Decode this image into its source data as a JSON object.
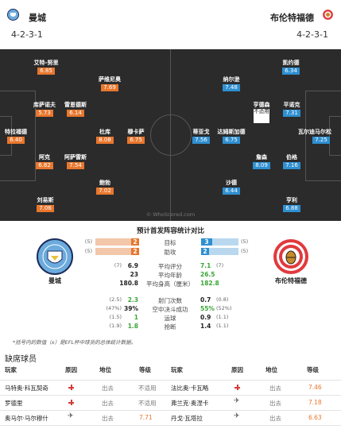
{
  "header": {
    "home": {
      "name": "曼城",
      "formation": "4-2-3-1",
      "crest": "man-city-crest"
    },
    "away": {
      "name": "布伦特福德",
      "formation": "4-2-3-1",
      "crest": "brentford-crest"
    }
  },
  "pitch": {
    "watermark": "© WhoScored.com",
    "home_players": [
      {
        "name": "艾特-努里",
        "rating": "6.85"
      },
      {
        "name": "萨维尼奥",
        "rating": "7.69"
      },
      {
        "name": "库萨诺夫",
        "rating": "5.73"
      },
      {
        "name": "雷恩德斯",
        "rating": "6.14"
      },
      {
        "name": "特拉福德",
        "rating": "6.40"
      },
      {
        "name": "杜库",
        "rating": "8.08"
      },
      {
        "name": "穆卡萨",
        "rating": "6.75"
      },
      {
        "name": "阿克",
        "rating": "6.82"
      },
      {
        "name": "阿萨雷斯",
        "rating": "7.54"
      },
      {
        "name": "鲍勃",
        "rating": "7.02"
      },
      {
        "name": "刘易斯",
        "rating": "7.06"
      }
    ],
    "away_players": [
      {
        "name": "凯约德",
        "rating": "6.34"
      },
      {
        "name": "纳尔逊",
        "rating": "7.48"
      },
      {
        "name": "亨德森",
        "rating": "不适用"
      },
      {
        "name": "平诺克",
        "rating": "7.31"
      },
      {
        "name": "蒂亚戈",
        "rating": "7.56"
      },
      {
        "name": "达姆斯加德",
        "rating": "6.75"
      },
      {
        "name": "瓦尔迪马尔松",
        "rating": "7.25"
      },
      {
        "name": "詹森",
        "rating": "8.09"
      },
      {
        "name": "伯格",
        "rating": "7.16"
      },
      {
        "name": "沙德",
        "rating": "6.44"
      },
      {
        "name": "亨利",
        "rating": "6.88"
      }
    ]
  },
  "stats": {
    "title": "预计首发阵容统计对比",
    "home_label": "曼城",
    "away_label": "布伦特福德",
    "bars": [
      {
        "label": "目标",
        "home_paren": "(5)",
        "home": "2",
        "away": "3",
        "away_paren": "(5)"
      },
      {
        "label": "助攻",
        "home_paren": "(5)",
        "home": "2",
        "away": "2",
        "away_paren": "(5)"
      }
    ],
    "rows": [
      {
        "label": "平均评分",
        "home_paren": "(7)",
        "home": "6.9",
        "away": "7.1",
        "away_paren": "(7)",
        "hl": "away"
      },
      {
        "label": "平均年龄",
        "home_paren": "",
        "home": "23",
        "away": "26.5",
        "away_paren": "",
        "hl": "away"
      },
      {
        "label": "平均身高（厘米）",
        "home_paren": "",
        "home": "180.8",
        "away": "182.8",
        "away_paren": "",
        "hl": "away"
      },
      {
        "label": "射门次数",
        "home_paren": "(2.5)",
        "home": "2.3",
        "away": "0.7",
        "away_paren": "(0.8)",
        "hl": "home"
      },
      {
        "label": "空中决斗成功",
        "home_paren": "(47%)",
        "home": "39%",
        "away": "55%",
        "away_paren": "(52%)",
        "hl": "away"
      },
      {
        "label": "运球",
        "home_paren": "(1.5)",
        "home": "1",
        "away": "0.9",
        "away_paren": "(1.1)",
        "hl": "home"
      },
      {
        "label": "抢断",
        "home_paren": "(1.9)",
        "home": "1.8",
        "away": "1.4",
        "away_paren": "(1.1)",
        "hl": "home"
      }
    ],
    "footnote": "*括号内的数值（x）是EFL杯中球员的总体统计数据。"
  },
  "absent": {
    "title": "缺席球员",
    "headers": {
      "player": "玩家",
      "reason": "原因",
      "position": "地位",
      "rating": "等级"
    },
    "rows": [
      {
        "home_player": "马特奥·科瓦契奇",
        "home_reason": "injury",
        "home_status": "出去",
        "home_rating": "不适用",
        "away_player": "法比奥·卡瓦略",
        "away_reason": "injury",
        "away_status": "出去",
        "away_rating": "7.46"
      },
      {
        "home_player": "罗德里",
        "home_reason": "injury",
        "home_status": "出去",
        "home_rating": "不适用",
        "away_player": "弗兰克·奥涅卡",
        "away_reason": "other",
        "away_status": "出去",
        "away_rating": "7.18"
      },
      {
        "home_player": "奥马尔·马尔穆什",
        "home_reason": "other",
        "home_status": "出去",
        "home_rating": "7.71",
        "away_player": "丹戈·瓦塔拉",
        "away_reason": "other",
        "away_status": "出去",
        "away_rating": "6.63"
      }
    ]
  },
  "colors": {
    "home": "#e8772e",
    "away": "#2f8fd1",
    "highlight": "#3aa535",
    "pitch": "#2b2b2b"
  }
}
